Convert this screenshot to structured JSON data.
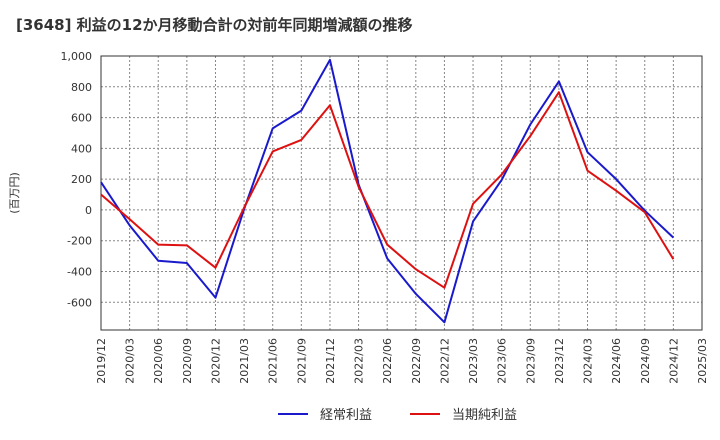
{
  "chart_data": {
    "type": "line",
    "title": "[3648]  利益の12か月移動合計の対前年同期増減額の推移",
    "ylabel": "(百万円)",
    "xlabel": "",
    "ylim": [
      -780,
      1000
    ],
    "yticks": [
      -600,
      -400,
      -200,
      0,
      200,
      400,
      600,
      800,
      1000
    ],
    "ytick_labels": [
      "-600",
      "-400",
      "-200",
      "0",
      "200",
      "400",
      "600",
      "800",
      "1,000"
    ],
    "categories": [
      "2019/12",
      "2020/03",
      "2020/06",
      "2020/09",
      "2020/12",
      "2021/03",
      "2021/06",
      "2021/09",
      "2021/12",
      "2022/03",
      "2022/06",
      "2022/09",
      "2022/12",
      "2023/03",
      "2023/06",
      "2023/09",
      "2023/12",
      "2024/03",
      "2024/06",
      "2024/09",
      "2024/12",
      "2025/03"
    ],
    "grid": true,
    "legend_position": "bottom",
    "series": [
      {
        "name": "経常利益",
        "color": "#1a1acc",
        "values": [
          180,
          -100,
          -330,
          -345,
          -570,
          5,
          530,
          645,
          975,
          165,
          -315,
          -545,
          -730,
          -75,
          195,
          555,
          835,
          375,
          200,
          -5,
          -180,
          null
        ]
      },
      {
        "name": "当期純利益",
        "color": "#dd1111",
        "values": [
          100,
          -60,
          -225,
          -230,
          -375,
          15,
          380,
          455,
          680,
          150,
          -225,
          -385,
          -505,
          40,
          230,
          480,
          765,
          255,
          125,
          -15,
          -320,
          null
        ]
      }
    ]
  }
}
